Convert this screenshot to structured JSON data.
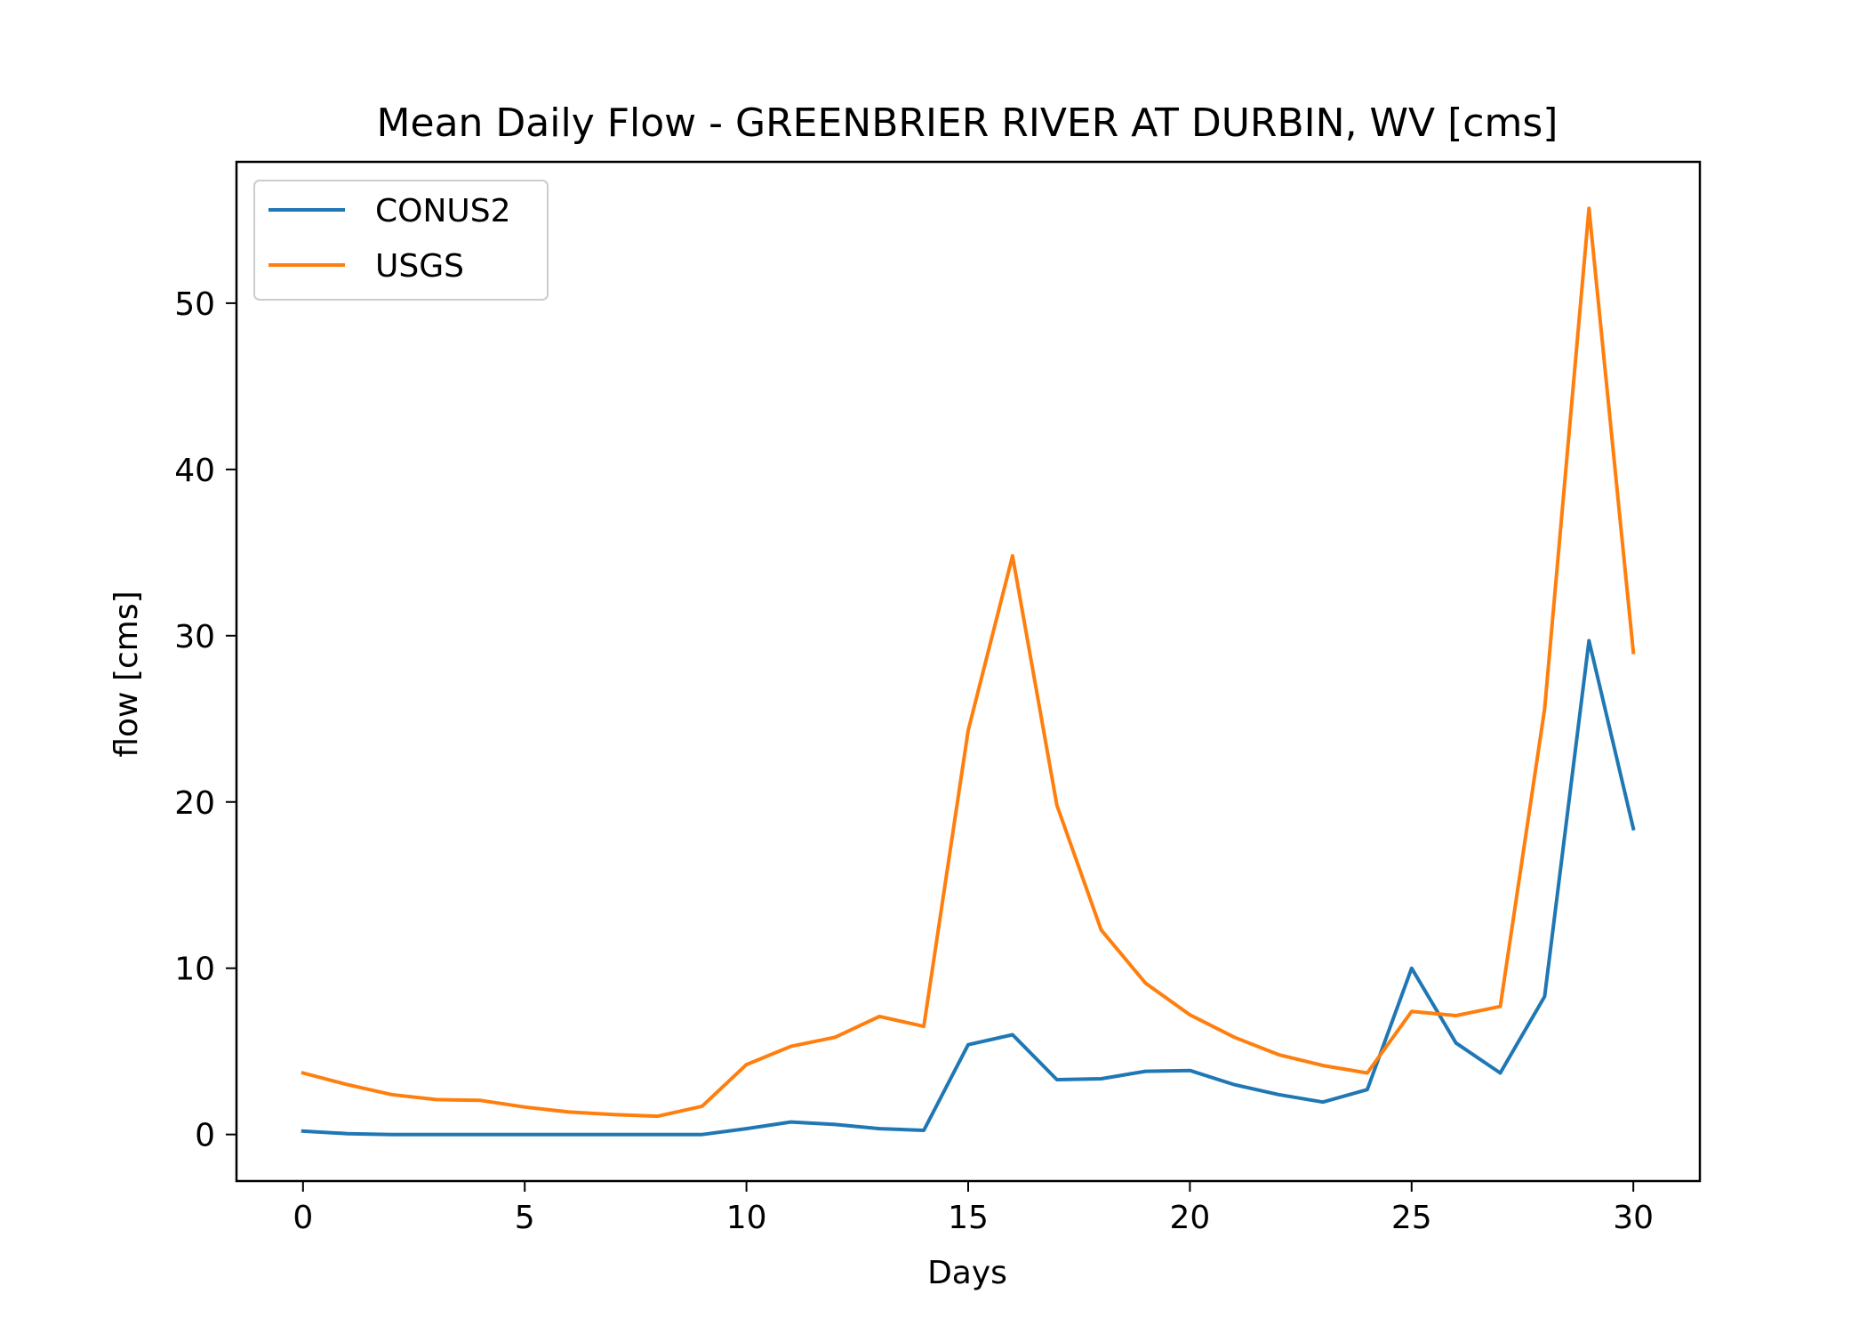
{
  "chart_data": {
    "type": "line",
    "title": "Mean Daily Flow - GREENBRIER RIVER AT DURBIN, WV [cms]",
    "xlabel": "Days",
    "ylabel": "flow [cms]",
    "xlim": [
      -1.5,
      31.5
    ],
    "ylim": [
      -2.8,
      58.5
    ],
    "xticks": [
      0,
      5,
      10,
      15,
      20,
      25,
      30
    ],
    "yticks": [
      0,
      10,
      20,
      30,
      40,
      50
    ],
    "grid": false,
    "legend_position": "top-left",
    "x": [
      0,
      1,
      2,
      3,
      4,
      5,
      6,
      7,
      8,
      9,
      10,
      11,
      12,
      13,
      14,
      15,
      16,
      17,
      18,
      19,
      20,
      21,
      22,
      23,
      24,
      25,
      26,
      27,
      28,
      29,
      30
    ],
    "series": [
      {
        "name": "CONUS2",
        "color": "#1f77b4",
        "values": [
          0.2,
          0.05,
          0.0,
          0.0,
          0.0,
          0.0,
          0.0,
          0.0,
          0.0,
          0.0,
          0.35,
          0.75,
          0.6,
          0.35,
          0.25,
          5.4,
          6.0,
          3.3,
          3.35,
          3.8,
          3.85,
          3.0,
          2.4,
          1.95,
          2.7,
          10.0,
          5.5,
          3.7,
          8.3,
          29.7,
          18.4
        ]
      },
      {
        "name": "USGS",
        "color": "#ff7f0e",
        "values": [
          3.7,
          3.0,
          2.4,
          2.1,
          2.05,
          1.65,
          1.35,
          1.2,
          1.1,
          1.7,
          4.2,
          5.3,
          5.85,
          7.1,
          6.5,
          24.3,
          34.8,
          19.8,
          12.3,
          9.1,
          7.2,
          5.85,
          4.8,
          4.15,
          3.7,
          7.4,
          7.15,
          7.7,
          25.6,
          55.7,
          29.0
        ]
      }
    ]
  }
}
